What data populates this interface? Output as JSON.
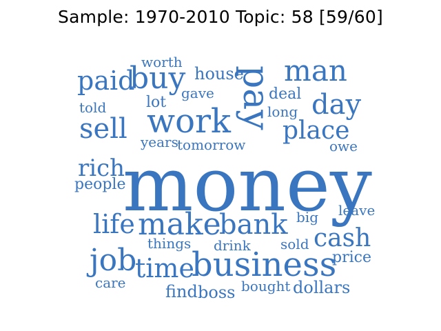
{
  "title": "Sample: 1970-2010 Topic: 58 [59/60]",
  "word_color": "#3a76bf",
  "words": [
    {
      "text": "money",
      "weight": 1.0
    },
    {
      "text": "business",
      "weight": 0.48
    },
    {
      "text": "pay",
      "weight": 0.52,
      "orientation": "vertical"
    },
    {
      "text": "work",
      "weight": 0.44
    },
    {
      "text": "make",
      "weight": 0.42
    },
    {
      "text": "man",
      "weight": 0.4
    },
    {
      "text": "buy",
      "weight": 0.4
    },
    {
      "text": "day",
      "weight": 0.38
    },
    {
      "text": "job",
      "weight": 0.36
    },
    {
      "text": "bank",
      "weight": 0.36
    },
    {
      "text": "sell",
      "weight": 0.35
    },
    {
      "text": "time",
      "weight": 0.34
    },
    {
      "text": "place",
      "weight": 0.33
    },
    {
      "text": "paid",
      "weight": 0.33
    },
    {
      "text": "life",
      "weight": 0.32
    },
    {
      "text": "cash",
      "weight": 0.3
    },
    {
      "text": "rich",
      "weight": 0.28
    },
    {
      "text": "house",
      "weight": 0.2
    },
    {
      "text": "lot",
      "weight": 0.19
    },
    {
      "text": "deal",
      "weight": 0.19
    },
    {
      "text": "dollars",
      "weight": 0.19
    },
    {
      "text": "people",
      "weight": 0.18
    },
    {
      "text": "price",
      "weight": 0.18
    },
    {
      "text": "find",
      "weight": 0.18
    },
    {
      "text": "boss",
      "weight": 0.18
    },
    {
      "text": "worth",
      "weight": 0.17
    },
    {
      "text": "gave",
      "weight": 0.17
    },
    {
      "text": "told",
      "weight": 0.16
    },
    {
      "text": "long",
      "weight": 0.16
    },
    {
      "text": "tomorrow",
      "weight": 0.16
    },
    {
      "text": "years",
      "weight": 0.15
    },
    {
      "text": "owe",
      "weight": 0.15
    },
    {
      "text": "big",
      "weight": 0.15
    },
    {
      "text": "leave",
      "weight": 0.15
    },
    {
      "text": "things",
      "weight": 0.15
    },
    {
      "text": "drink",
      "weight": 0.15
    },
    {
      "text": "sold",
      "weight": 0.15
    },
    {
      "text": "bought",
      "weight": 0.15
    },
    {
      "text": "care",
      "weight": 0.15
    }
  ]
}
